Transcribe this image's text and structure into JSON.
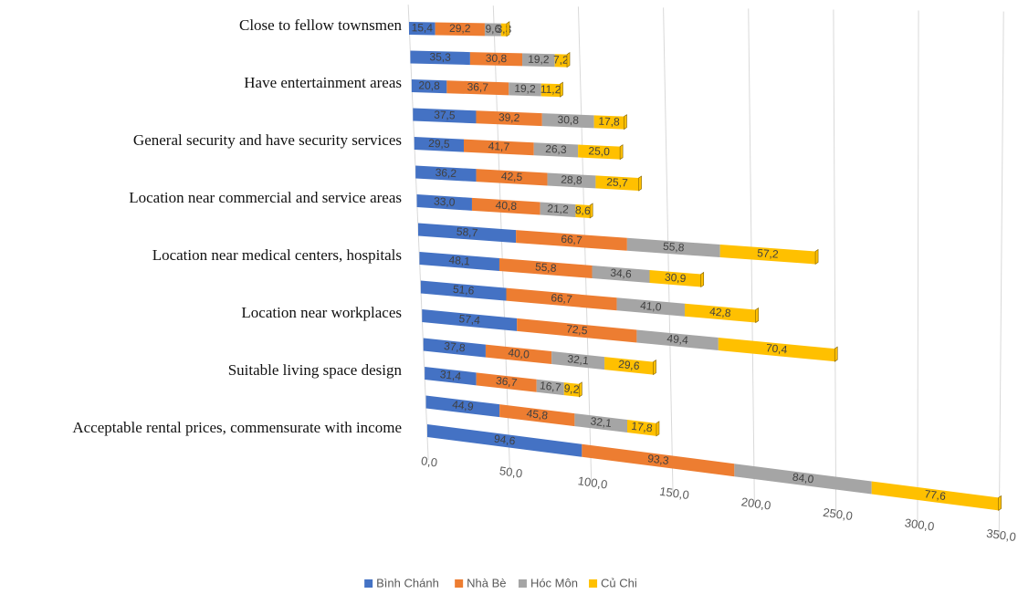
{
  "chart_data": {
    "type": "bar",
    "orientation": "horizontal",
    "stacked": true,
    "categories": [
      "Close to fellow townsmen",
      null,
      "Have entertainment areas",
      null,
      "General security and have security services",
      null,
      "Location near commercial and service areas",
      null,
      "Location near medical centers, hospitals",
      null,
      "Location near workplaces",
      null,
      "Suitable living space design",
      null,
      "Acceptable rental prices, commensurate with income"
    ],
    "series": [
      {
        "name": "Bình Chánh",
        "color": "#4472c4",
        "values": [
          15.4,
          35.3,
          20.8,
          37.5,
          29.5,
          36.2,
          33.0,
          58.7,
          48.1,
          51.6,
          57.4,
          37.8,
          31.4,
          44.9,
          94.6
        ],
        "value_labels": [
          "15,4",
          "35,3",
          "20,8",
          "37,5",
          "29,5",
          "36,2",
          "33,0",
          "58,7",
          "48,1",
          "51,6",
          "57,4",
          "37,8",
          "31,4",
          "44,9",
          "94,6"
        ]
      },
      {
        "name": "Nhà Bè",
        "color": "#ed7d31",
        "values": [
          29.2,
          30.8,
          36.7,
          39.2,
          41.7,
          42.5,
          40.8,
          66.7,
          55.8,
          66.7,
          72.5,
          40.0,
          36.7,
          45.8,
          93.3
        ],
        "value_labels": [
          "29,2",
          "30,8",
          "36,7",
          "39,2",
          "41,7",
          "42,5",
          "40,8",
          "66,7",
          "55,8",
          "66,7",
          "72,5",
          "40,0",
          "36,7",
          "45,8",
          "93,3"
        ]
      },
      {
        "name": "Hóc Môn",
        "color": "#a5a5a5",
        "values": [
          9.6,
          19.2,
          19.2,
          30.8,
          26.3,
          28.8,
          21.2,
          55.8,
          34.6,
          41.0,
          49.4,
          32.1,
          16.7,
          32.1,
          84.0
        ],
        "value_labels": [
          "9,6",
          "19,2",
          "19,2",
          "30,8",
          "26,3",
          "28,8",
          "21,2",
          "55,8",
          "34,6",
          "41,0",
          "49,4",
          "32,1",
          "16,7",
          "32,1",
          "84,0"
        ]
      },
      {
        "name": "Củ Chi",
        "color": "#ffc000",
        "values": [
          3.3,
          7.2,
          11.2,
          17.8,
          25.0,
          25.7,
          8.6,
          57.2,
          30.9,
          42.8,
          70.4,
          29.6,
          9.2,
          17.8,
          77.6
        ],
        "value_labels": [
          "3,3",
          "7,2",
          "11,2",
          "17,8",
          "25,0",
          "25,7",
          "8,6",
          "57,2",
          "30,9",
          "42,8",
          "70,4",
          "29,6",
          "9,2",
          "17,8",
          "77,6"
        ]
      }
    ],
    "xlim": [
      0,
      350
    ],
    "xticks": [
      {
        "value": 0,
        "label": "0,0"
      },
      {
        "value": 50,
        "label": "50,0"
      },
      {
        "value": 100,
        "label": "100,0"
      },
      {
        "value": 150,
        "label": "150,0"
      },
      {
        "value": 200,
        "label": "200,0"
      },
      {
        "value": 250,
        "label": "250,0"
      },
      {
        "value": 300,
        "label": "300,0"
      },
      {
        "value": 350,
        "label": "350,0"
      }
    ],
    "grid": true,
    "legend": "bottom"
  }
}
